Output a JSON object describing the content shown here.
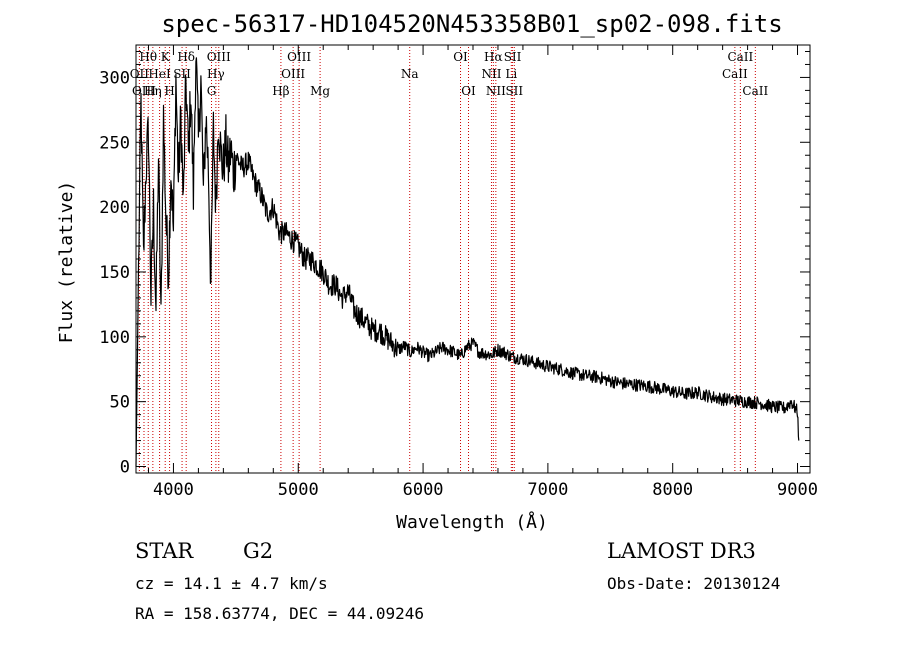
{
  "chart_data": {
    "type": "line",
    "title": "spec-56317-HD104520N453358B01_sp02-098.fits",
    "xlabel": "Wavelength (Å)",
    "ylabel": "Flux (relative)",
    "xlim": [
      3700,
      9100
    ],
    "ylim": [
      -5,
      325
    ],
    "x_ticks": [
      4000,
      5000,
      6000,
      7000,
      8000,
      9000
    ],
    "y_ticks": [
      0,
      50,
      100,
      150,
      200,
      250,
      300
    ],
    "series": [
      {
        "name": "spectrum",
        "x": [
          3700,
          3720,
          3740,
          3760,
          3780,
          3800,
          3820,
          3840,
          3860,
          3880,
          3900,
          3920,
          3940,
          3960,
          3980,
          4000,
          4020,
          4040,
          4060,
          4080,
          4100,
          4120,
          4140,
          4160,
          4180,
          4200,
          4220,
          4240,
          4260,
          4280,
          4300,
          4320,
          4340,
          4360,
          4380,
          4400,
          4420,
          4440,
          4460,
          4480,
          4500,
          4550,
          4600,
          4650,
          4700,
          4750,
          4800,
          4850,
          4900,
          4950,
          5000,
          5050,
          5100,
          5150,
          5200,
          5250,
          5300,
          5350,
          5400,
          5450,
          5500,
          5550,
          5600,
          5650,
          5700,
          5750,
          5800,
          5850,
          5900,
          5950,
          6000,
          6050,
          6100,
          6150,
          6200,
          6250,
          6300,
          6350,
          6400,
          6450,
          6500,
          6550,
          6600,
          6650,
          6700,
          6750,
          6800,
          6900,
          7000,
          7100,
          7200,
          7300,
          7400,
          7500,
          7600,
          7700,
          7800,
          7900,
          8000,
          8100,
          8200,
          8300,
          8400,
          8500,
          8600,
          8700,
          8800,
          8900,
          8950,
          9000,
          9010
        ],
        "y": [
          0,
          150,
          280,
          160,
          230,
          260,
          130,
          200,
          120,
          240,
          110,
          270,
          190,
          150,
          230,
          180,
          300,
          220,
          270,
          200,
          300,
          240,
          290,
          210,
          320,
          250,
          300,
          210,
          270,
          230,
          140,
          260,
          200,
          270,
          240,
          230,
          250,
          230,
          245,
          225,
          240,
          230,
          235,
          220,
          210,
          195,
          200,
          180,
          180,
          175,
          170,
          160,
          160,
          155,
          150,
          140,
          140,
          130,
          135,
          120,
          115,
          110,
          105,
          105,
          100,
          95,
          90,
          93,
          88,
          92,
          88,
          85,
          88,
          92,
          90,
          88,
          85,
          92,
          95,
          88,
          87,
          86,
          90,
          88,
          85,
          84,
          83,
          80,
          77,
          75,
          72,
          70,
          69,
          66,
          64,
          63,
          62,
          60,
          58,
          56,
          57,
          54,
          52,
          51,
          50,
          49,
          46,
          45,
          50,
          42,
          20
        ]
      }
    ],
    "spectral_lines": [
      {
        "name": "Hθ",
        "wavelength": 3798,
        "row": 1
      },
      {
        "name": "OII",
        "wavelength": 3727,
        "row": 2
      },
      {
        "name": "OIII",
        "wavelength": 3764,
        "row": 3
      },
      {
        "name": "K",
        "wavelength": 3934,
        "row": 1
      },
      {
        "name": "HeI",
        "wavelength": 3889,
        "row": 2
      },
      {
        "name": "Hη",
        "wavelength": 3835,
        "row": 3
      },
      {
        "name": "Hδ",
        "wavelength": 4102,
        "row": 1
      },
      {
        "name": "SII",
        "wavelength": 4069,
        "row": 2
      },
      {
        "name": "H",
        "wavelength": 3969,
        "row": 3
      },
      {
        "name": "OIII",
        "wavelength": 4363,
        "row": 1
      },
      {
        "name": "Hγ",
        "wavelength": 4340,
        "row": 2
      },
      {
        "name": "G",
        "wavelength": 4305,
        "row": 3
      },
      {
        "name": "OIII",
        "wavelength": 5007,
        "row": 1
      },
      {
        "name": "OIII",
        "wavelength": 4959,
        "row": 2
      },
      {
        "name": "Hβ",
        "wavelength": 4861,
        "row": 3
      },
      {
        "name": "Mg",
        "wavelength": 5175,
        "row": 3
      },
      {
        "name": "Na",
        "wavelength": 5893,
        "row": 2
      },
      {
        "name": "OI",
        "wavelength": 6300,
        "row": 1
      },
      {
        "name": "OI",
        "wavelength": 6364,
        "row": 3
      },
      {
        "name": "Hα",
        "wavelength": 6563,
        "row": 1
      },
      {
        "name": "NII",
        "wavelength": 6548,
        "row": 2
      },
      {
        "name": "NII",
        "wavelength": 6583,
        "row": 3
      },
      {
        "name": "SII",
        "wavelength": 6717,
        "row": 1
      },
      {
        "name": "Li",
        "wavelength": 6707,
        "row": 2
      },
      {
        "name": "SII",
        "wavelength": 6731,
        "row": 3
      },
      {
        "name": "CaII",
        "wavelength": 8542,
        "row": 1
      },
      {
        "name": "CaII",
        "wavelength": 8498,
        "row": 2
      },
      {
        "name": "CaII",
        "wavelength": 8662,
        "row": 3
      }
    ]
  },
  "info": {
    "object_class": "STAR",
    "subclass": "G2",
    "survey": "LAMOST DR3",
    "redshift": "cz = 14.1 ± 4.7 km/s",
    "obs_date": "Obs-Date: 20130124",
    "coords": "RA = 158.63774, DEC =  44.09246"
  },
  "colors": {
    "spectrum": "#000000",
    "line_markers": "#cc0000",
    "axes": "#000000"
  }
}
